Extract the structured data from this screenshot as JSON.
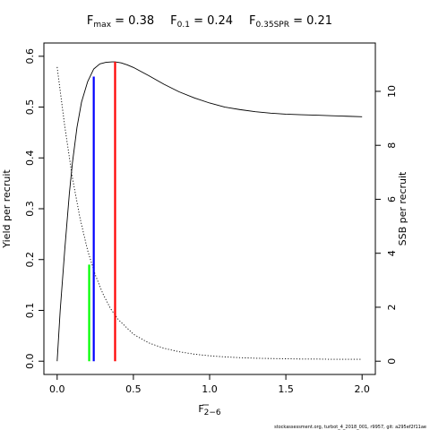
{
  "chart_data": {
    "type": "line",
    "title_parts": [
      {
        "main": "F",
        "sub": "max",
        "value": " = 0.38"
      },
      {
        "main": "F",
        "sub": "0.1",
        "value": " = 0.24"
      },
      {
        "main": "F",
        "sub": "0.35SPR",
        "value": " = 0.21"
      }
    ],
    "xlabel": {
      "main": "F",
      "sub": "2−6"
    },
    "ylabel": "Yield per recruit",
    "y2label": "SSB per recruit",
    "xlim": [
      0,
      2
    ],
    "ylim": [
      0,
      0.6
    ],
    "y2lim": [
      0,
      11.3
    ],
    "x_ticks": [
      0,
      0.5,
      1,
      1.5,
      2
    ],
    "x_tick_labels": [
      "0.0",
      "0.5",
      "1.0",
      "1.5",
      "2.0"
    ],
    "y_ticks": [
      0,
      0.1,
      0.2,
      0.3,
      0.4,
      0.5,
      0.6
    ],
    "y_tick_labels": [
      "0.0",
      "0.1",
      "0.2",
      "0.3",
      "0.4",
      "0.5",
      "0.6"
    ],
    "y2_ticks": [
      0,
      2,
      4,
      6,
      8,
      10
    ],
    "y2_tick_labels": [
      "0",
      "2",
      "4",
      "6",
      "8",
      "10"
    ],
    "grid": false,
    "series": [
      {
        "axis": "left",
        "style": "solid",
        "color": "#000000",
        "x": [
          0,
          0.02,
          0.05,
          0.08,
          0.1,
          0.13,
          0.16,
          0.2,
          0.24,
          0.28,
          0.32,
          0.36,
          0.38,
          0.42,
          0.46,
          0.5,
          0.6,
          0.7,
          0.8,
          0.9,
          1.0,
          1.1,
          1.2,
          1.3,
          1.4,
          1.5,
          1.6,
          1.7,
          1.8,
          1.9,
          2.0
        ],
        "values": [
          0.0,
          0.1,
          0.22,
          0.33,
          0.39,
          0.46,
          0.51,
          0.55,
          0.575,
          0.585,
          0.588,
          0.589,
          0.589,
          0.587,
          0.583,
          0.578,
          0.562,
          0.545,
          0.53,
          0.518,
          0.508,
          0.5,
          0.495,
          0.491,
          0.488,
          0.486,
          0.485,
          0.484,
          0.483,
          0.482,
          0.481
        ]
      },
      {
        "axis": "right",
        "style": "dotted",
        "color": "#000000",
        "x": [
          0,
          0.05,
          0.1,
          0.15,
          0.2,
          0.25,
          0.3,
          0.35,
          0.4,
          0.5,
          0.6,
          0.7,
          0.8,
          0.9,
          1.0,
          1.1,
          1.2,
          1.3,
          1.4,
          1.5,
          1.6,
          1.7,
          1.8,
          1.9,
          2.0
        ],
        "values": [
          10.9,
          8.7,
          6.8,
          5.3,
          4.1,
          3.2,
          2.5,
          1.95,
          1.55,
          1.0,
          0.68,
          0.48,
          0.35,
          0.26,
          0.2,
          0.16,
          0.13,
          0.11,
          0.1,
          0.09,
          0.08,
          0.08,
          0.07,
          0.07,
          0.07
        ]
      }
    ],
    "reference_lines": [
      {
        "x": 0.38,
        "y0": 0,
        "y1": 0.589,
        "color": "#ff0000"
      },
      {
        "x": 0.24,
        "y0": 0,
        "y1": 0.56,
        "color": "#0000ff"
      },
      {
        "x": 0.21,
        "y0": 0,
        "y1": 0.19,
        "color": "#00ff00"
      }
    ]
  },
  "footer": "stockassessment.org, turbot_4_2018_001, r9957, git: a295ef2f11ae"
}
